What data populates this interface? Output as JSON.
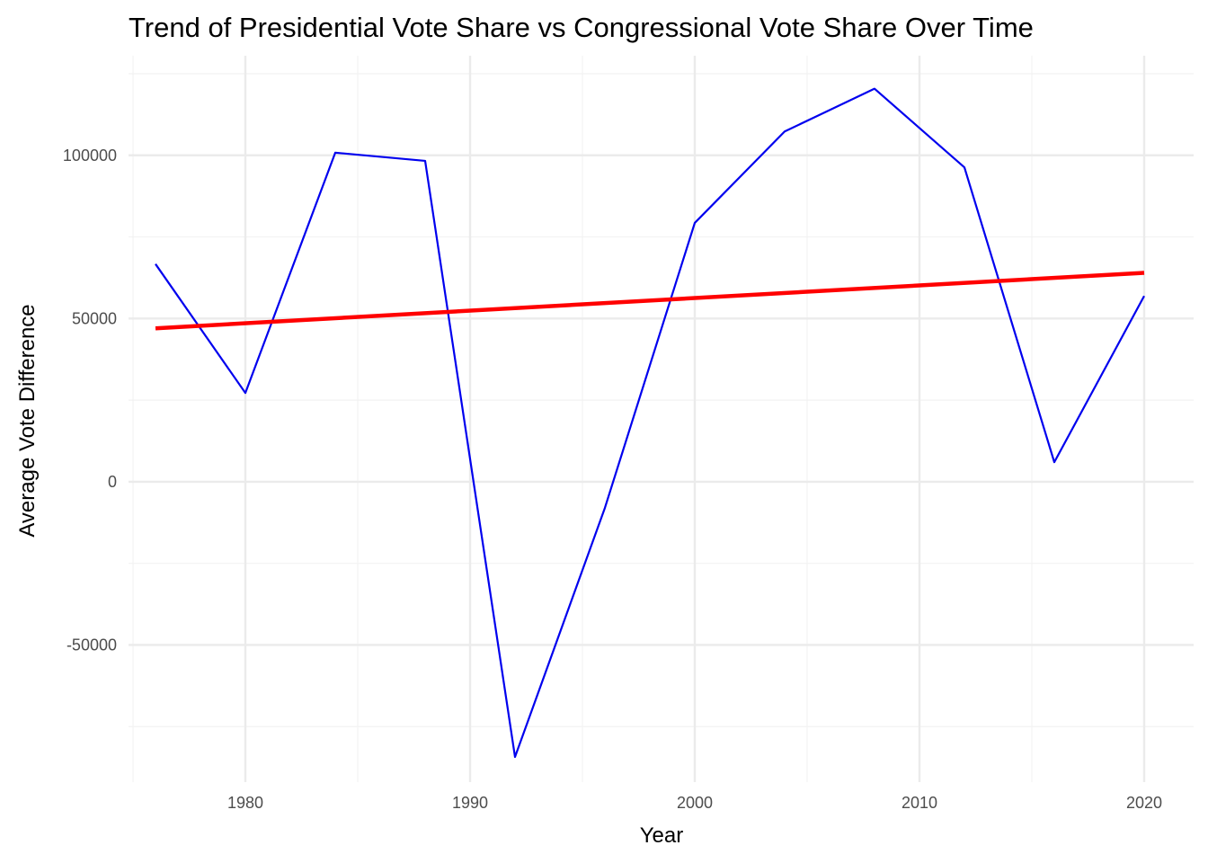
{
  "chart_data": {
    "type": "line",
    "title": "Trend of Presidential Vote Share vs Congressional Vote Share Over Time",
    "xlabel": "Year",
    "ylabel": "Average Vote Difference",
    "xlim": [
      1974.8,
      2022.2
    ],
    "ylim": [
      -92000,
      130500
    ],
    "x_ticks": [
      1980,
      1990,
      2000,
      2010,
      2020
    ],
    "x_minor_ticks": [
      1975,
      1985,
      1995,
      2005,
      2015
    ],
    "y_ticks": [
      -50000,
      0,
      50000,
      100000
    ],
    "y_minor_ticks": [
      -75000,
      -25000,
      25000,
      75000,
      125000
    ],
    "grid": true,
    "legend": "none",
    "series": [
      {
        "x": [
          1976,
          1980,
          1984,
          1988,
          1992,
          1996,
          2000,
          2004,
          2008,
          2012,
          2016,
          2020
        ],
        "y": [
          66700,
          27200,
          100800,
          98300,
          -84300,
          -8000,
          79300,
          107300,
          120400,
          96300,
          6000,
          56900
        ],
        "color": "#0000ee",
        "style": "line"
      },
      {
        "x": [
          1976,
          2020
        ],
        "y": [
          47000,
          64000
        ],
        "color": "#ff0000",
        "style": "trend"
      }
    ]
  }
}
